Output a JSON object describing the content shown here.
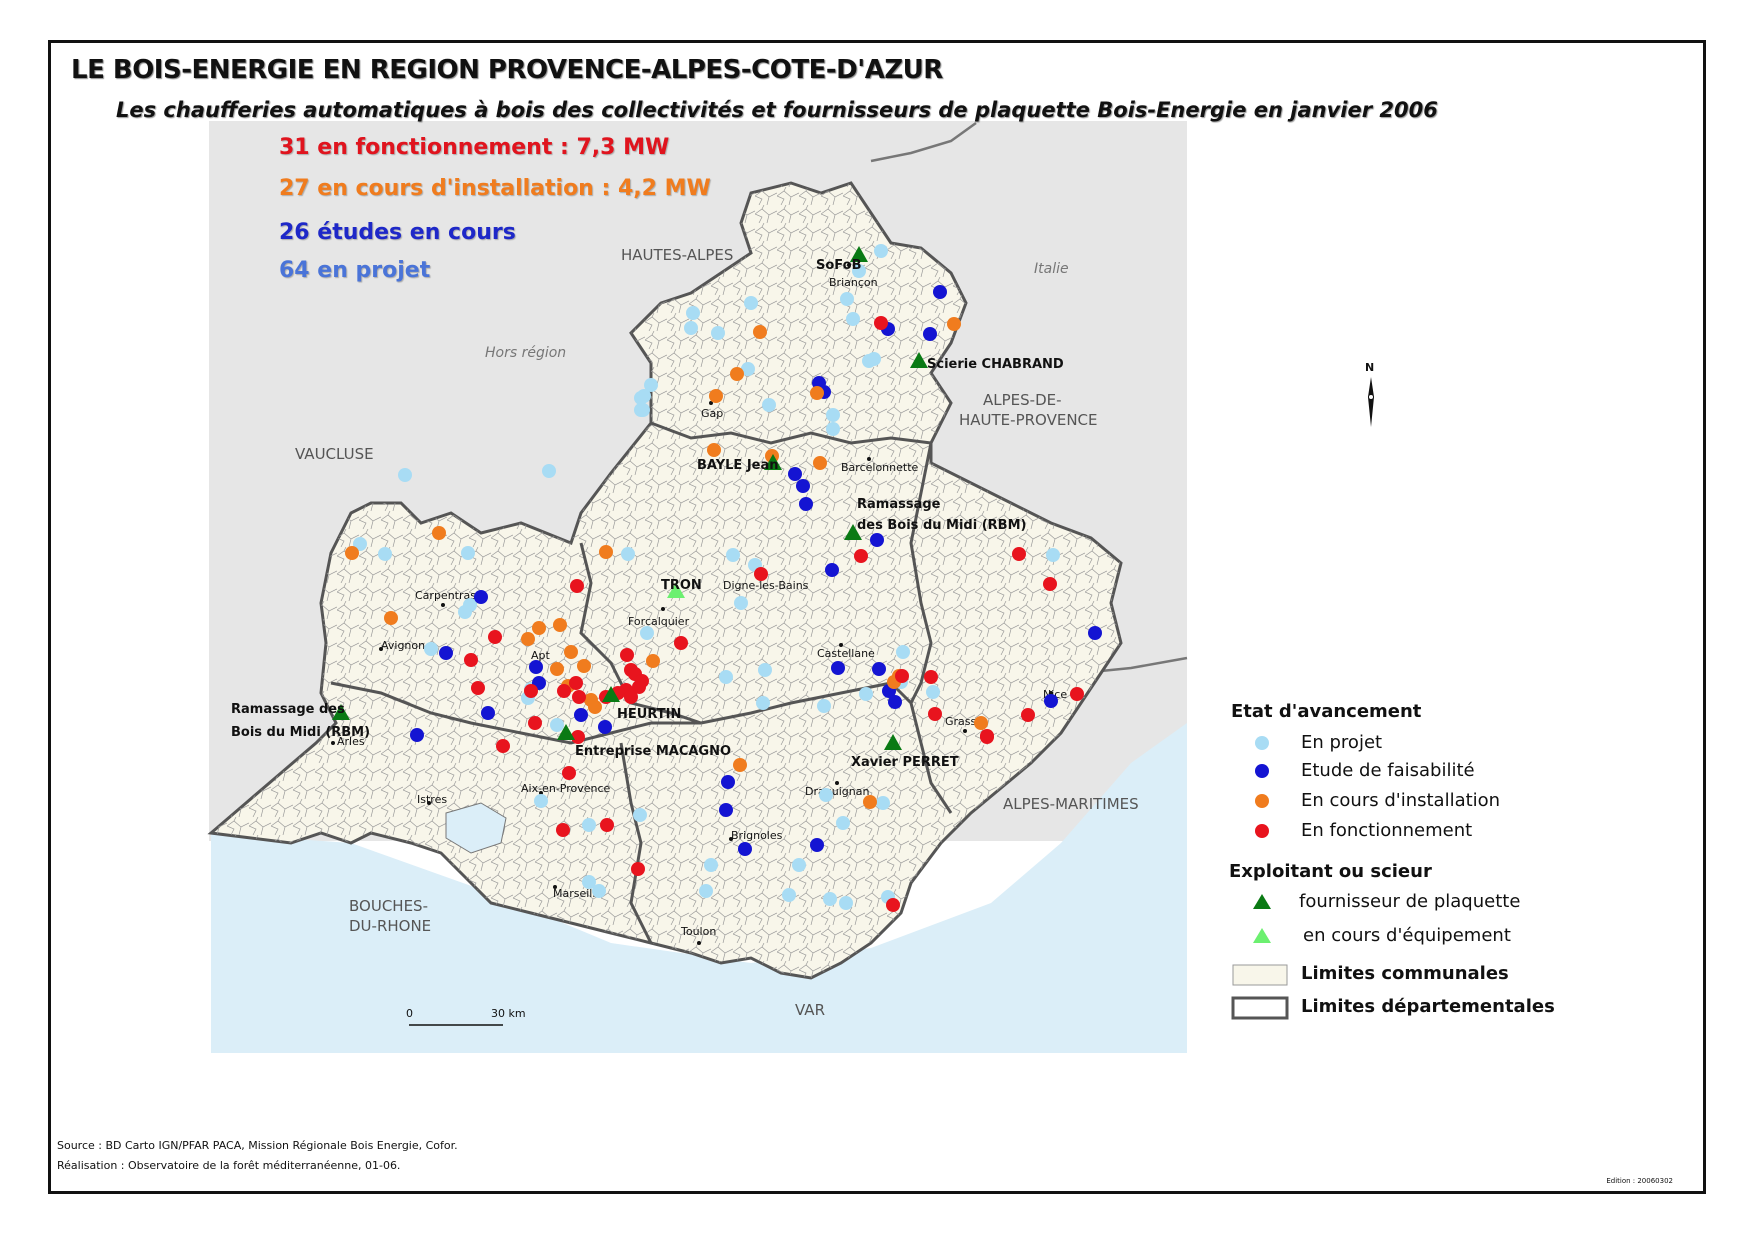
{
  "title": "LE BOIS-ENERGIE EN REGION PROVENCE-ALPES-COTE-D'AZUR",
  "subtitle": "Les chaufferies automatiques à bois des collectivités et fournisseurs de plaquette Bois-Energie en janvier 2006",
  "stats": [
    {
      "text": "31 en fonctionnement : 7,3 MW",
      "color": "#e0141e"
    },
    {
      "text": "27 en cours d'installation : 4,2 MW",
      "color": "#f07c1e"
    },
    {
      "text": "26 études en cours",
      "color": "#1e28c8"
    },
    {
      "text": "64 en projet",
      "color": "#4a74d8"
    }
  ],
  "regions": {
    "hautes_alpes": "HAUTES-ALPES",
    "vaucluse": "VAUCLUSE",
    "ahp_line1": "ALPES-DE-",
    "ahp_line2": "HAUTE-PROVENCE",
    "alpes_maritimes": "ALPES-MARITIMES",
    "bdr_line1": "BOUCHES-",
    "bdr_line2": "DU-RHONE",
    "var": "VAR",
    "italie": "Italie",
    "hors_region": "Hors région"
  },
  "cities": {
    "briancon": "Briançon",
    "gap": "Gap",
    "barcelonnette": "Barcelonnette",
    "digne": "Digne-les-Bains",
    "forcalquier": "Forcalquier",
    "castellane": "Castellane",
    "carpentras": "Carpentras",
    "avignon": "Avignon",
    "apt": "Apt",
    "arles": "Arles",
    "istres": "Istres",
    "aix": "Aix-en-Provence",
    "marseille": "Marseille",
    "brignoles": "Brignoles",
    "draguignan": "Draguignan",
    "grasse": "Grasse",
    "nice": "Nice",
    "toulon": "Toulon"
  },
  "sites": {
    "sofob": "SoFoB",
    "chabrand": "Scierie CHABRAND",
    "bayle": "BAYLE Jean",
    "rbm_n_line1": "Ramassage",
    "rbm_n_line2": "des Bois du Midi (RBM)",
    "tron": "TRON",
    "heurtin": "HEURTIN",
    "macagno": "Entreprise MACAGNO",
    "rbm_w_line1": "Ramassage des",
    "rbm_w_line2": "Bois du Midi (RBM)",
    "perret": "Xavier PERRET"
  },
  "north": "N",
  "scale": {
    "zero": "0",
    "end": "30 km"
  },
  "legend": {
    "etat_title": "Etat d'avancement",
    "en_projet": "En projet",
    "etude": "Etude de faisabilité",
    "installation": "En cours d'installation",
    "fonctionnement": "En fonctionnement",
    "exploitant_title": "Exploitant ou scieur",
    "fournisseur": "fournisseur de plaquette",
    "equipement": "en cours d'équipement",
    "communales": "Limites communales",
    "departementales": "Limites départementales"
  },
  "colors": {
    "en_projet": "#a8dcf4",
    "etude": "#1414d2",
    "installation": "#f07c1e",
    "fonctionnement": "#e8141e",
    "fournisseur": "#0a7a14",
    "equipement": "#6cf070",
    "land": "#f8f6ea",
    "sea": "#dbeef8",
    "outside": "#e6e6e6"
  },
  "source": "Source : BD Carto IGN/PFAR PACA, Mission Régionale Bois Energie, Cofor.",
  "realisation": "Réalisation : Observatoire de la forêt méditerranéenne, 01-06.",
  "edition": "Edition : 20060302"
}
